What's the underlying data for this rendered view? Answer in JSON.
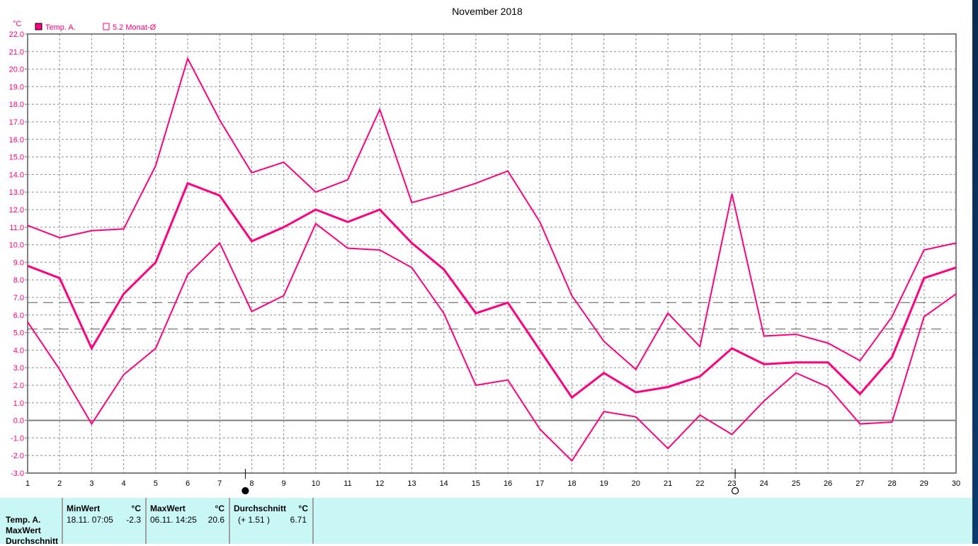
{
  "chart_data": {
    "type": "line",
    "title": "November 2018",
    "ylabel": "°C",
    "ylim": [
      -3,
      22
    ],
    "yticks": [
      "22.0",
      "21.0",
      "20.0",
      "19.0",
      "18.0",
      "17.0",
      "16.0",
      "15.0",
      "14.0",
      "13.0",
      "12.0",
      "11.0",
      "10.0",
      "9.0",
      "8.0",
      "7.0",
      "6.0",
      "5.0",
      "4.0",
      "3.0",
      "2.0",
      "1.0",
      "0.0",
      "-1.0",
      "-2.0",
      "-3.0"
    ],
    "x": [
      1,
      2,
      3,
      4,
      5,
      6,
      7,
      8,
      9,
      10,
      11,
      12,
      13,
      14,
      15,
      16,
      17,
      18,
      19,
      20,
      21,
      22,
      23,
      24,
      25,
      26,
      27,
      28,
      29,
      30
    ],
    "legend": [
      {
        "label": "Temp. A.",
        "filled": true
      },
      {
        "label": "5.2 Monat-Ø",
        "filled": false
      }
    ],
    "series": [
      {
        "name": "Max",
        "values": [
          11.1,
          10.4,
          10.8,
          10.9,
          14.5,
          20.6,
          17.1,
          14.1,
          14.7,
          13.0,
          13.7,
          17.7,
          12.4,
          12.9,
          13.5,
          14.2,
          11.3,
          7.1,
          4.5,
          2.9,
          6.1,
          4.2,
          12.9,
          4.8,
          4.9,
          4.4,
          3.4,
          5.9,
          9.7,
          10.1
        ]
      },
      {
        "name": "Mean",
        "values": [
          8.8,
          8.1,
          4.1,
          7.2,
          9.0,
          13.5,
          12.8,
          10.2,
          11.0,
          12.0,
          11.3,
          12.0,
          10.1,
          8.6,
          6.1,
          6.7,
          4.0,
          1.3,
          2.7,
          1.6,
          1.9,
          2.5,
          4.1,
          3.2,
          3.3,
          3.3,
          1.5,
          3.6,
          8.1,
          8.7
        ]
      },
      {
        "name": "Min",
        "values": [
          5.6,
          2.9,
          -0.2,
          2.6,
          4.1,
          8.3,
          10.1,
          6.2,
          7.1,
          11.2,
          9.8,
          9.7,
          8.7,
          6.1,
          2.0,
          2.3,
          -0.5,
          -2.3,
          0.5,
          0.2,
          -1.6,
          0.3,
          -0.8,
          1.1,
          2.7,
          1.9,
          -0.2,
          -0.1,
          5.9,
          7.2
        ]
      }
    ],
    "reference_lines": [
      6.71,
      5.2
    ],
    "moon_markers": [
      {
        "day": 7.8,
        "phase": "half"
      },
      {
        "day": 23.1,
        "phase": "full"
      }
    ],
    "color": "#ff0080"
  },
  "table": {
    "row_labels": [
      "Temp. A.",
      "MaxWert",
      "Durchschnitt"
    ],
    "min": {
      "header": "MinWert",
      "unit": "°C",
      "date": "18.11.  07:05",
      "value": "-2.3"
    },
    "max": {
      "header": "MaxWert",
      "unit": "°C",
      "date": "06.11.  14:25",
      "value": "20.6"
    },
    "avg": {
      "header": "Durchschnitt",
      "unit": "°C",
      "delta": "(+ 1.51 )",
      "value": "6.71"
    }
  }
}
